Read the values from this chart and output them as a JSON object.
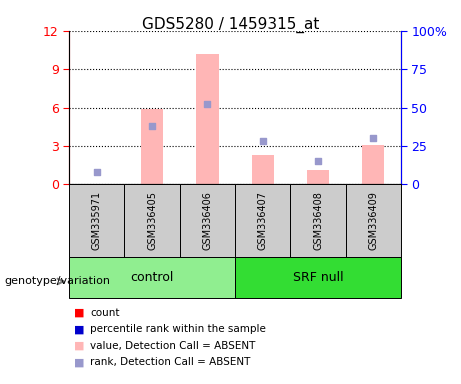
{
  "title": "GDS5280 / 1459315_at",
  "samples": [
    "GSM335971",
    "GSM336405",
    "GSM336406",
    "GSM336407",
    "GSM336408",
    "GSM336409"
  ],
  "pink_bar_values": [
    0.05,
    5.9,
    10.2,
    2.3,
    1.1,
    3.1
  ],
  "blue_sq_values_pct": [
    8.0,
    38.0,
    52.0,
    28.0,
    15.0,
    30.0
  ],
  "ylim_left": [
    0,
    12
  ],
  "ylim_right": [
    0,
    100
  ],
  "yticks_left": [
    0,
    3,
    6,
    9,
    12
  ],
  "ytick_labels_left": [
    "0",
    "3",
    "6",
    "9",
    "12"
  ],
  "yticks_right": [
    0,
    25,
    50,
    75,
    100
  ],
  "ytick_labels_right": [
    "0",
    "25",
    "50",
    "75",
    "100%"
  ],
  "pink_color": "#FFB6B6",
  "blue_sq_color": "#9898CC",
  "bar_width": 0.4,
  "sample_box_color": "#CCCCCC",
  "control_color": "#90EE90",
  "srfnull_color": "#33DD33",
  "legend_colors": [
    "#FF0000",
    "#0000CC",
    "#FFB6B6",
    "#9898CC"
  ],
  "legend_labels": [
    "count",
    "percentile rank within the sample",
    "value, Detection Call = ABSENT",
    "rank, Detection Call = ABSENT"
  ]
}
